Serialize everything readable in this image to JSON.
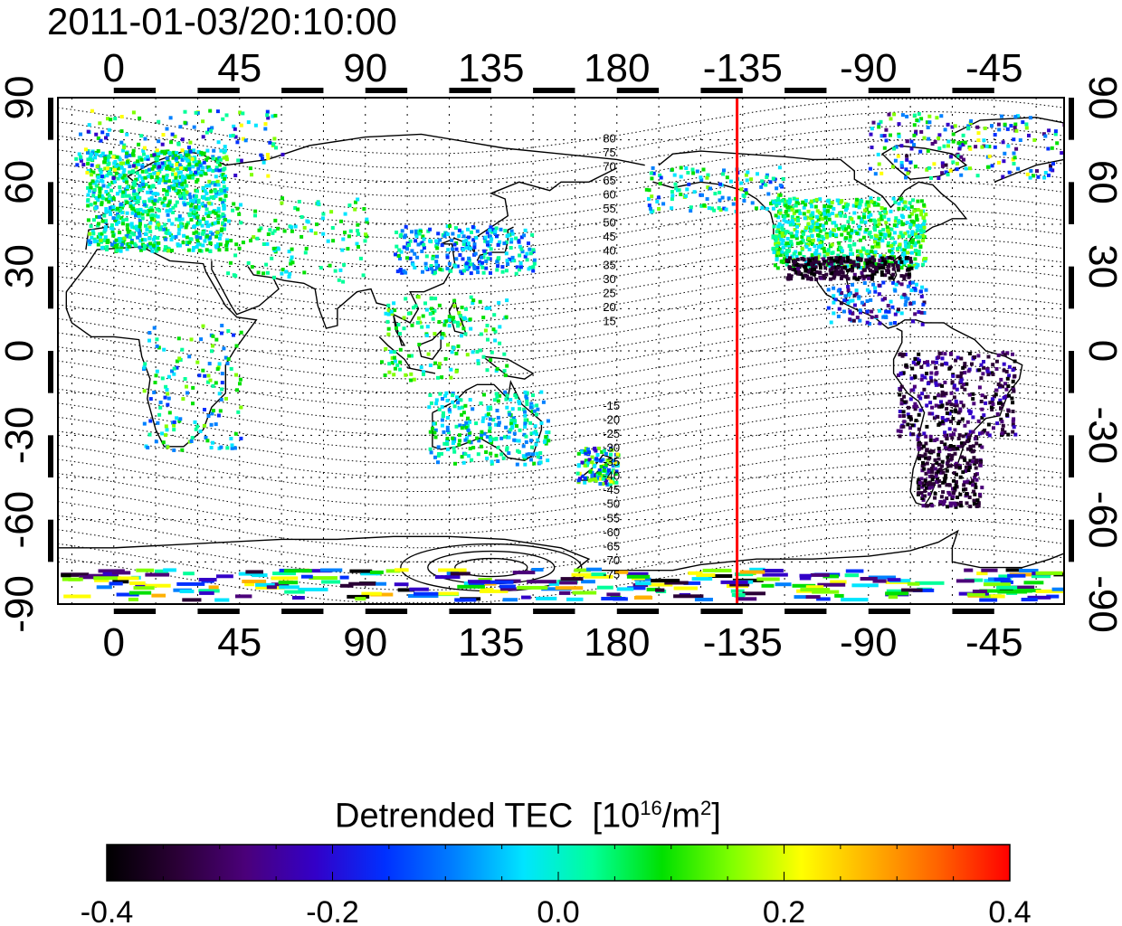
{
  "title": "2011-01-03/20:10:00",
  "map": {
    "projection": "equirectangular",
    "lon_range": [
      -20,
      340
    ],
    "lat_range": [
      -90,
      90
    ],
    "top_lon_ticks": [
      "0",
      "45",
      "90",
      "135",
      "180",
      "-135",
      "-90",
      "-45"
    ],
    "bottom_lon_ticks": [
      "0",
      "45",
      "90",
      "135",
      "180",
      "-135",
      "-90",
      "-45"
    ],
    "left_lat_ticks": [
      "90",
      "60",
      "30",
      "0",
      "-30",
      "-60",
      "-90"
    ],
    "right_lat_ticks": [
      "90",
      "60",
      "30",
      "0",
      "-30",
      "-60",
      "-90"
    ],
    "grid": "dotted, 15° spacing",
    "terminator_longitude": -137,
    "terminator_color": "#ff0000",
    "contour_labels_north": [
      "80",
      "75",
      "70",
      "65",
      "60",
      "55",
      "50",
      "45",
      "40",
      "35",
      "30",
      "25",
      "20",
      "15"
    ],
    "contour_labels_south": [
      "-15",
      "-20",
      "-25",
      "-30",
      "-35",
      "-40",
      "-45",
      "-50",
      "-55",
      "-60",
      "-65",
      "-70",
      "-75"
    ]
  },
  "colorbar": {
    "label": "Detrended TEC",
    "unit_base": "[10",
    "unit_exp": "16",
    "unit_mid": "/m",
    "unit_exp2": "2",
    "unit_end": "]",
    "min": -0.4,
    "max": 0.4,
    "tick_labels": [
      "-0.4",
      "-0.2",
      "0.0",
      "0.2",
      "0.4"
    ],
    "colormap": [
      "#000000",
      "#2a0035",
      "#4b007a",
      "#3300c8",
      "#0030ff",
      "#0080ff",
      "#00e5ff",
      "#00ff99",
      "#00e000",
      "#80ff00",
      "#ffff00",
      "#ffb000",
      "#ff6000",
      "#ff0000"
    ]
  }
}
